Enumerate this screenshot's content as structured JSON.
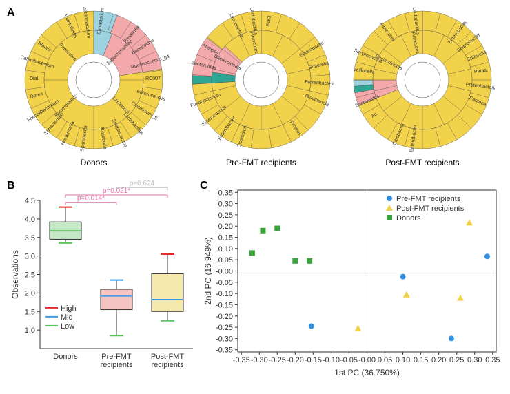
{
  "colors": {
    "yellow": "#f3d24b",
    "pink": "#f3a9a9",
    "teal": "#2da693",
    "lightblue": "#9dd3e0",
    "green_box": "#c5e8c6",
    "pink_box": "#f6c3c3",
    "tan_box": "#f6e9b0",
    "outline": "#333333",
    "red_line": "#e12828",
    "blue_line": "#3e9be8",
    "green_line": "#5dc460",
    "pval_pink": "#e36fa7",
    "pval_gray": "#bdbdbd",
    "scatter_blue": "#2f8fde",
    "scatter_yellow": "#f0d24a",
    "scatter_green": "#3aa23a",
    "grid_faint": "#cfcfcf"
  },
  "panelA": {
    "label": "A",
    "ring_outer_r": 100,
    "ring_mid_r": 72,
    "ring_inner_r": 38,
    "hole_r": 26,
    "donuts": [
      {
        "caption": "Donors",
        "outer": [
          {
            "frac": 0.055,
            "color": "lightblue"
          },
          {
            "frac": 0.17,
            "color": "pink"
          },
          {
            "frac": 0.775,
            "color": "yellow"
          }
        ],
        "inner": [
          {
            "frac": 0.06,
            "color": "lightblue"
          },
          {
            "frac": 0.165,
            "color": "pink"
          },
          {
            "frac": 0.775,
            "color": "yellow"
          }
        ],
        "outer_labels": [
          "Eubacterium",
          "",
          "Prevotella",
          "Bacteroides",
          "Ruminococcus_g4",
          "RC007",
          "Enterococcus",
          "Clostridium_S",
          "Lactobacillus",
          "Streptococcus",
          "Roseburia",
          "Sporobacter",
          "Holdemania",
          "Eubacterium",
          "Faecalibacterium",
          "Dorea",
          "Dial.",
          "Catenibacterium",
          "Blautia",
          "",
          "Anaerofustis",
          "Acetitomaculum"
        ],
        "inner_labels": [
          "Eubacteriaceae",
          "Lactobacil.",
          "Bacteroidetes",
          "Firmicutes"
        ]
      },
      {
        "caption": "Pre-FMT recipients",
        "outer": [
          {
            "frac": 0.74,
            "color": "yellow"
          },
          {
            "frac": 0.02,
            "color": "teal"
          },
          {
            "frac": 0.095,
            "color": "pink"
          },
          {
            "frac": 0.145,
            "color": "yellow"
          }
        ],
        "inner": [
          {
            "frac": 0.74,
            "color": "yellow"
          },
          {
            "frac": 0.035,
            "color": "teal"
          },
          {
            "frac": 0.095,
            "color": "pink"
          },
          {
            "frac": 0.13,
            "color": "yellow"
          }
        ],
        "outer_labels": [
          "S163",
          "",
          "",
          "Enterobacter",
          "Sutterella",
          "Proteobacteria",
          "Providencia",
          "",
          "Proteus",
          "",
          "",
          "Clostridium",
          "Enterobacter",
          "Enterococcus",
          "Fusobacterium",
          "",
          "Bacteroides",
          "Alistipes",
          "",
          "Leuconostoc",
          "Lactobacillus"
        ],
        "inner_labels": [
          "",
          "",
          "",
          "",
          "",
          "",
          "",
          "",
          "",
          "",
          "",
          "Bacteroidetes",
          "",
          "Firmicutes"
        ]
      },
      {
        "caption": "Post-FMT recipients",
        "outer": [
          {
            "frac": 0.69,
            "color": "yellow"
          },
          {
            "frac": 0.03,
            "color": "pink"
          },
          {
            "frac": 0.015,
            "color": "teal"
          },
          {
            "frac": 0.015,
            "color": "lightblue"
          },
          {
            "frac": 0.25,
            "color": "yellow"
          }
        ],
        "inner": [
          {
            "frac": 0.69,
            "color": "yellow"
          },
          {
            "frac": 0.06,
            "color": "pink"
          },
          {
            "frac": 0.25,
            "color": "yellow"
          }
        ],
        "outer_labels": [
          "",
          "",
          "Enterobacter",
          "Enterobacter",
          "Sutterella",
          "Paras.",
          "Proteobacteria",
          "Pantoea",
          "",
          "",
          "",
          "",
          "Enterobacter",
          "Citrobacter",
          "",
          "Ac.",
          "Bacteroides",
          "",
          "Veillonella",
          "Streptococcus",
          "",
          "Firmicutes",
          "",
          "Lactobacillus"
        ],
        "inner_labels": [
          "",
          "",
          "",
          "",
          "",
          "",
          "",
          "",
          "",
          "",
          "",
          "Bacteroidetes",
          "",
          "Firmicutes"
        ]
      }
    ]
  },
  "panelB": {
    "label": "B",
    "ylabel": "Observations",
    "ylim": [
      0.5,
      4.5
    ],
    "ytick_step": 0.5,
    "categories": [
      "Donors",
      "Pre-FMT\nrecipients",
      "Post-FMT\nrecipients"
    ],
    "boxes": [
      {
        "fill": "green_box",
        "whisk_low": 3.35,
        "q1": 3.45,
        "med": 3.68,
        "q3": 3.92,
        "whisk_high": 4.32
      },
      {
        "fill": "pink_box",
        "whisk_low": 0.85,
        "q1": 1.55,
        "med": 1.92,
        "q3": 2.1,
        "whisk_high": 2.35
      },
      {
        "fill": "tan_box",
        "whisk_low": 1.25,
        "q1": 1.5,
        "med": 1.82,
        "q3": 2.52,
        "whisk_high": 3.05
      }
    ],
    "median_colors": [
      "green_line",
      "blue_line",
      "blue_line"
    ],
    "whisker_colors": [
      [
        "red_line",
        "green_line"
      ],
      [
        "blue_line",
        "green_line"
      ],
      [
        "red_line",
        "green_line"
      ]
    ],
    "pvals": [
      {
        "text": "p=0.014*",
        "a": 0,
        "b": 1,
        "y": 4.45,
        "color": "pval_pink"
      },
      {
        "text": "p=0.021*",
        "a": 0,
        "b": 2,
        "y": 4.65,
        "color": "pval_pink"
      },
      {
        "text": "p=0.624",
        "a": 1,
        "b": 2,
        "y": 4.85,
        "color": "pval_gray"
      }
    ],
    "legend": [
      {
        "label": "High",
        "color": "red_line"
      },
      {
        "label": "Mid",
        "color": "blue_line"
      },
      {
        "label": "Low",
        "color": "green_line"
      }
    ]
  },
  "panelC": {
    "label": "C",
    "xlabel": "1st PC (36.750%)",
    "ylabel": "2nd PC (16.949%)",
    "xlim": [
      -0.36,
      0.36
    ],
    "ylim": [
      -0.36,
      0.36
    ],
    "tick_step": 0.05,
    "legend": [
      {
        "label": "Pre-FMT recipients",
        "marker": "circle",
        "color": "scatter_blue"
      },
      {
        "label": "Post-FMT recipients",
        "marker": "triangle",
        "color": "scatter_yellow"
      },
      {
        "label": "Donors",
        "marker": "square",
        "color": "scatter_green"
      }
    ],
    "points": [
      {
        "g": "green",
        "x": -0.32,
        "y": 0.08
      },
      {
        "g": "green",
        "x": -0.29,
        "y": 0.18
      },
      {
        "g": "green",
        "x": -0.25,
        "y": 0.19
      },
      {
        "g": "green",
        "x": -0.2,
        "y": 0.045
      },
      {
        "g": "green",
        "x": -0.16,
        "y": 0.045
      },
      {
        "g": "blue",
        "x": -0.155,
        "y": -0.245
      },
      {
        "g": "blue",
        "x": 0.1,
        "y": -0.025
      },
      {
        "g": "blue",
        "x": 0.235,
        "y": -0.3
      },
      {
        "g": "blue",
        "x": 0.335,
        "y": 0.065
      },
      {
        "g": "yellow",
        "x": -0.025,
        "y": -0.255
      },
      {
        "g": "yellow",
        "x": 0.11,
        "y": -0.105
      },
      {
        "g": "yellow",
        "x": 0.26,
        "y": -0.12
      },
      {
        "g": "yellow",
        "x": 0.285,
        "y": 0.215
      }
    ]
  }
}
